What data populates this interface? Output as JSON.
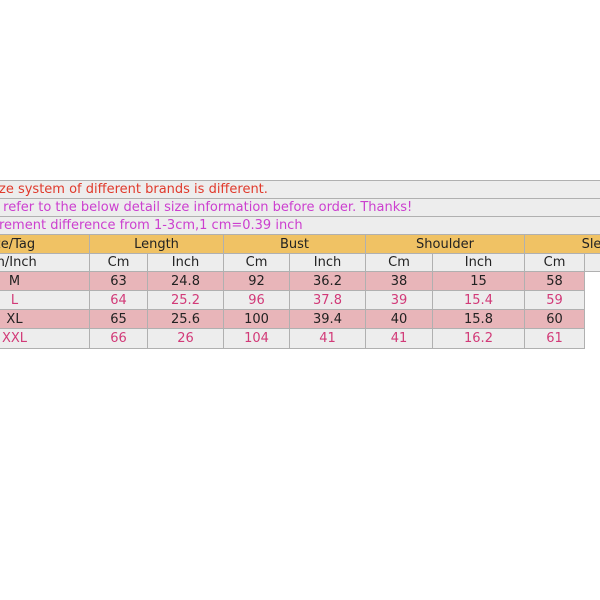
{
  "notes": [
    {
      "text": "ze system of different brands is different.",
      "color": "#e03a2c"
    },
    {
      "text": " refer to the below detail size information before order. Thanks!",
      "color": "#cc3fcf"
    },
    {
      "text": "rement difference from 1-3cm,1 cm=0.39 inch",
      "color": "#cc3fcf"
    }
  ],
  "table": {
    "header": [
      "ze/Tag",
      "Length",
      "Bust",
      "Shoulder",
      "Slee"
    ],
    "subheader": [
      "m/Inch",
      "Cm",
      "Inch",
      "Cm",
      "Inch",
      "Cm",
      "Inch",
      "Cm"
    ],
    "rows": [
      [
        "M",
        63,
        24.8,
        92,
        36.2,
        38,
        15,
        58
      ],
      [
        "L",
        64,
        25.2,
        96,
        37.8,
        39,
        15.4,
        59
      ],
      [
        "XL",
        65,
        25.6,
        100,
        39.4,
        40,
        15.8,
        60
      ],
      [
        "XXL",
        66,
        26,
        104,
        41,
        41,
        16.2,
        61
      ]
    ]
  }
}
